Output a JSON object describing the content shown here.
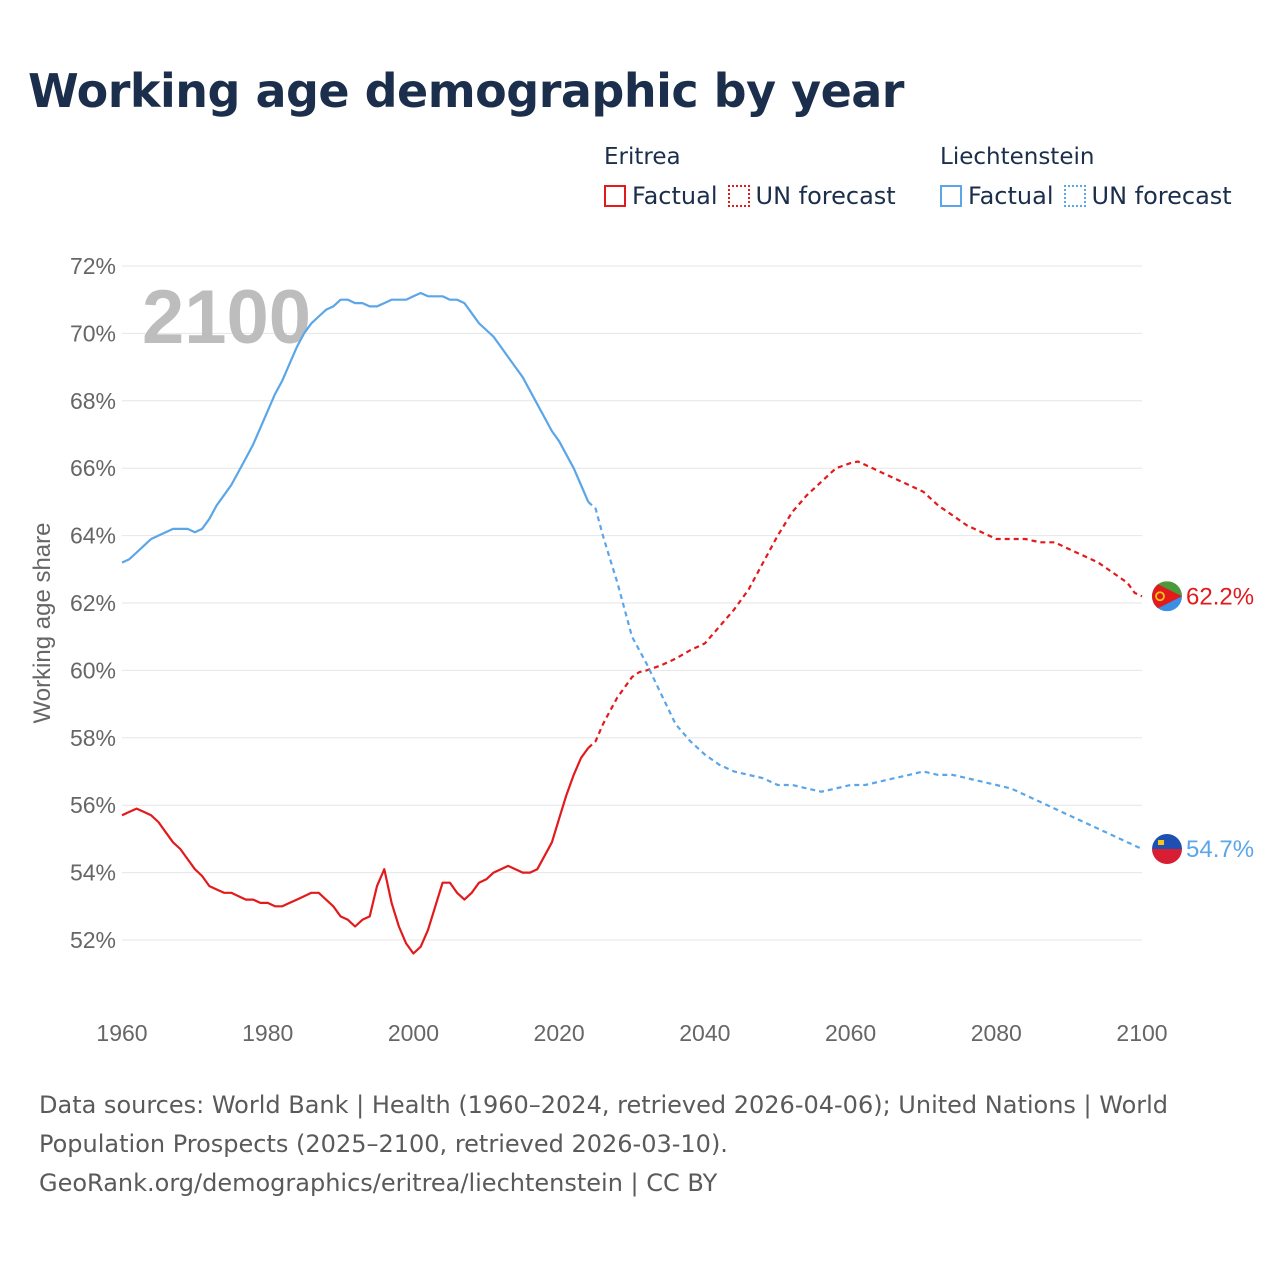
{
  "title": "Working age demographic by year",
  "legend": {
    "groups": [
      {
        "name": "Eritrea",
        "color": "#e31a1c",
        "factual_label": "Factual",
        "forecast_label": "UN forecast"
      },
      {
        "name": "Liechtenstein",
        "color": "#5aa6e8",
        "factual_label": "Factual",
        "forecast_label": "UN forecast"
      }
    ]
  },
  "footer": {
    "line1": "Data sources: World Bank | Health (1960–2024, retrieved 2026-04-06); United Nations | World",
    "line2": "Population Prospects (2025–2100, retrieved 2026-03-10).",
    "line3": "GeoRank.org/demographics/eritrea/liechtenstein | CC BY"
  },
  "chart_data": {
    "type": "line",
    "title": "Working age demographic by year",
    "ylabel": "Working age share",
    "xlabel": "",
    "year_marker": "2100",
    "xlim": [
      1960,
      2100
    ],
    "ylim": [
      50,
      72
    ],
    "x_ticks": [
      1960,
      1980,
      2000,
      2020,
      2040,
      2060,
      2080,
      2100
    ],
    "y_ticks": [
      52,
      54,
      56,
      58,
      60,
      62,
      64,
      66,
      68,
      70,
      72
    ],
    "y_tick_labels": [
      "52%",
      "54%",
      "56%",
      "58%",
      "60%",
      "62%",
      "64%",
      "66%",
      "68%",
      "70%",
      "72%"
    ],
    "grid": true,
    "series": [
      {
        "name": "Eritrea",
        "color": "#e31a1c",
        "end_label": "62.2%",
        "factual": {
          "x": [
            1960,
            1961,
            1962,
            1963,
            1964,
            1965,
            1966,
            1967,
            1968,
            1969,
            1970,
            1971,
            1972,
            1973,
            1974,
            1975,
            1976,
            1977,
            1978,
            1979,
            1980,
            1981,
            1982,
            1983,
            1984,
            1985,
            1986,
            1987,
            1988,
            1989,
            1990,
            1991,
            1992,
            1993,
            1994,
            1995,
            1996,
            1997,
            1998,
            1999,
            2000,
            2001,
            2002,
            2003,
            2004,
            2005,
            2006,
            2007,
            2008,
            2009,
            2010,
            2011,
            2012,
            2013,
            2014,
            2015,
            2016,
            2017,
            2018,
            2019,
            2020,
            2021,
            2022,
            2023,
            2024
          ],
          "y": [
            55.7,
            55.8,
            55.9,
            55.8,
            55.7,
            55.5,
            55.2,
            54.9,
            54.7,
            54.4,
            54.1,
            53.9,
            53.6,
            53.5,
            53.4,
            53.4,
            53.3,
            53.2,
            53.2,
            53.1,
            53.1,
            53.0,
            53.0,
            53.1,
            53.2,
            53.3,
            53.4,
            53.4,
            53.2,
            53.0,
            52.7,
            52.6,
            52.4,
            52.6,
            52.7,
            53.6,
            54.1,
            53.1,
            52.4,
            51.9,
            51.6,
            51.8,
            52.3,
            53.0,
            53.7,
            53.7,
            53.4,
            53.2,
            53.4,
            53.7,
            53.8,
            54.0,
            54.1,
            54.2,
            54.1,
            54.0,
            54.0,
            54.1,
            54.5,
            54.9,
            55.6,
            56.3,
            56.9,
            57.4,
            57.7
          ]
        },
        "forecast": {
          "x": [
            2024,
            2025,
            2026,
            2027,
            2028,
            2029,
            2030,
            2031,
            2032,
            2034,
            2036,
            2038,
            2040,
            2042,
            2044,
            2046,
            2048,
            2050,
            2052,
            2054,
            2056,
            2058,
            2060,
            2061,
            2062,
            2064,
            2066,
            2068,
            2070,
            2072,
            2074,
            2076,
            2078,
            2080,
            2082,
            2084,
            2086,
            2088,
            2090,
            2092,
            2094,
            2096,
            2098,
            2099,
            2100
          ],
          "y": [
            57.7,
            57.9,
            58.4,
            58.8,
            59.2,
            59.5,
            59.8,
            59.95,
            60.0,
            60.15,
            60.35,
            60.6,
            60.8,
            61.3,
            61.8,
            62.4,
            63.2,
            64.0,
            64.7,
            65.2,
            65.6,
            66.0,
            66.15,
            66.2,
            66.1,
            65.9,
            65.7,
            65.5,
            65.3,
            64.9,
            64.6,
            64.3,
            64.1,
            63.9,
            63.9,
            63.9,
            63.8,
            63.8,
            63.6,
            63.4,
            63.2,
            62.9,
            62.6,
            62.3,
            62.2
          ]
        }
      },
      {
        "name": "Liechtenstein",
        "color": "#5aa6e8",
        "end_label": "54.7%",
        "factual": {
          "x": [
            1960,
            1961,
            1962,
            1963,
            1964,
            1965,
            1966,
            1967,
            1968,
            1969,
            1970,
            1971,
            1972,
            1973,
            1974,
            1975,
            1976,
            1977,
            1978,
            1979,
            1980,
            1981,
            1982,
            1983,
            1984,
            1985,
            1986,
            1987,
            1988,
            1989,
            1990,
            1991,
            1992,
            1993,
            1994,
            1995,
            1996,
            1997,
            1998,
            1999,
            2000,
            2001,
            2002,
            2003,
            2004,
            2005,
            2006,
            2007,
            2008,
            2009,
            2010,
            2011,
            2012,
            2013,
            2014,
            2015,
            2016,
            2017,
            2018,
            2019,
            2020,
            2021,
            2022,
            2023,
            2024
          ],
          "y": [
            63.2,
            63.3,
            63.5,
            63.7,
            63.9,
            64.0,
            64.1,
            64.2,
            64.2,
            64.2,
            64.1,
            64.2,
            64.5,
            64.9,
            65.2,
            65.5,
            65.9,
            66.3,
            66.7,
            67.2,
            67.7,
            68.2,
            68.6,
            69.1,
            69.6,
            70.0,
            70.3,
            70.5,
            70.7,
            70.8,
            71.0,
            71.0,
            70.9,
            70.9,
            70.8,
            70.8,
            70.9,
            71.0,
            71.0,
            71.0,
            71.1,
            71.2,
            71.1,
            71.1,
            71.1,
            71.0,
            71.0,
            70.9,
            70.6,
            70.3,
            70.1,
            69.9,
            69.6,
            69.3,
            69.0,
            68.7,
            68.3,
            67.9,
            67.5,
            67.1,
            66.8,
            66.4,
            66.0,
            65.5,
            65.0
          ]
        },
        "forecast": {
          "x": [
            2024,
            2025,
            2026,
            2027,
            2028,
            2029,
            2030,
            2031,
            2032,
            2034,
            2036,
            2038,
            2040,
            2042,
            2044,
            2046,
            2048,
            2050,
            2052,
            2054,
            2056,
            2058,
            2060,
            2062,
            2064,
            2066,
            2068,
            2070,
            2072,
            2074,
            2076,
            2078,
            2080,
            2082,
            2084,
            2086,
            2088,
            2090,
            2092,
            2094,
            2096,
            2098,
            2100
          ],
          "y": [
            65.0,
            64.8,
            64.0,
            63.3,
            62.6,
            61.8,
            61.0,
            60.6,
            60.2,
            59.3,
            58.4,
            57.9,
            57.5,
            57.2,
            57.0,
            56.9,
            56.8,
            56.6,
            56.6,
            56.5,
            56.4,
            56.5,
            56.6,
            56.6,
            56.7,
            56.8,
            56.9,
            57.0,
            56.9,
            56.9,
            56.8,
            56.7,
            56.6,
            56.5,
            56.3,
            56.1,
            55.9,
            55.7,
            55.5,
            55.3,
            55.1,
            54.9,
            54.7
          ]
        }
      }
    ]
  }
}
